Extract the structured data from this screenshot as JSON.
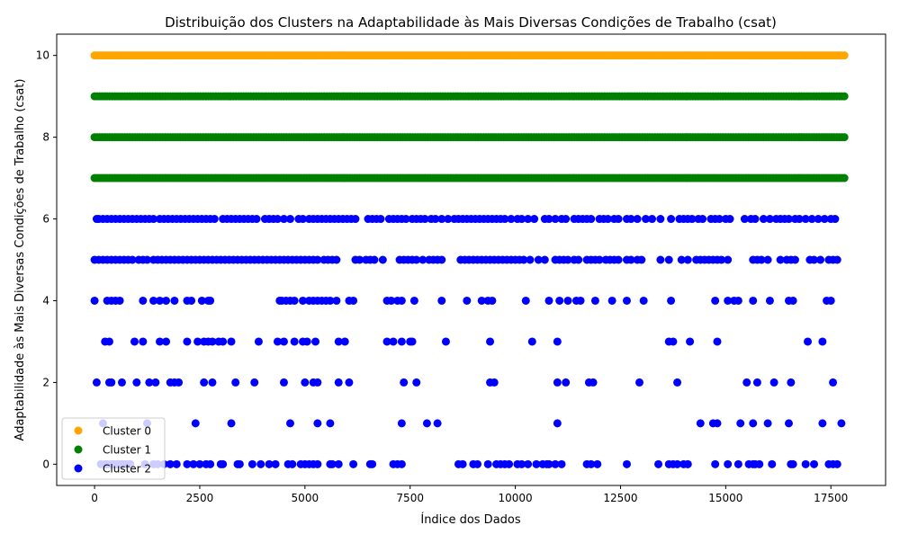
{
  "chart_data": {
    "type": "scatter",
    "title": "Distribuição dos Clusters na Adaptabilidade às Mais Diversas Condições de Trabalho (csat)",
    "xlabel": "Índice dos Dados",
    "ylabel": "Adaptabilidade às Mais Diversas Condições de Trabalho (csat)",
    "xlim": [
      -900,
      18800
    ],
    "ylim": [
      -0.52,
      10.52
    ],
    "xticks": [
      0,
      2500,
      5000,
      7500,
      10000,
      12500,
      15000,
      17500
    ],
    "yticks": [
      0,
      2,
      4,
      6,
      8,
      10
    ],
    "grid": false,
    "legend_position": "bottom-left",
    "series": [
      {
        "name": "Cluster 0",
        "color": "#ffa500",
        "rows": [
          {
            "y": 10,
            "x_ranges": [
              [
                0,
                17870
              ]
            ]
          }
        ]
      },
      {
        "name": "Cluster 1",
        "color": "#008000",
        "rows": [
          {
            "y": 9,
            "x_ranges": [
              [
                0,
                17870
              ]
            ]
          },
          {
            "y": 8,
            "x_ranges": [
              [
                0,
                17870
              ]
            ]
          },
          {
            "y": 7,
            "x_ranges": [
              [
                0,
                17870
              ]
            ]
          }
        ]
      },
      {
        "name": "Cluster 2",
        "color": "#0000ff",
        "rows": [
          {
            "y": 6,
            "x": [
              50,
              100,
              200,
              300,
              400,
              500,
              600,
              700,
              800,
              900,
              1000,
              1100,
              1200,
              1300,
              1400,
              1550,
              1650,
              1750,
              1850,
              1950,
              2050,
              2150,
              2250,
              2350,
              2450,
              2550,
              2650,
              2750,
              2850,
              3050,
              3150,
              3250,
              3350,
              3450,
              3550,
              3650,
              3750,
              3850,
              4050,
              4150,
              4250,
              4350,
              4500,
              4650,
              4850,
              4950,
              5100,
              5200,
              5300,
              5400,
              5500,
              5600,
              5700,
              5800,
              5900,
              6000,
              6100,
              6200,
              6500,
              6600,
              6700,
              6800,
              7000,
              7100,
              7200,
              7300,
              7400,
              7550,
              7650,
              7750,
              7850,
              8000,
              8100,
              8250,
              8400,
              8550,
              8650,
              8750,
              8850,
              8950,
              9050,
              9150,
              9250,
              9350,
              9450,
              9550,
              9650,
              9750,
              9900,
              10050,
              10150,
              10300,
              10450,
              10700,
              10800,
              10950,
              11100,
              11200,
              11400,
              11500,
              11600,
              11700,
              11800,
              12000,
              12100,
              12200,
              12350,
              12450,
              12650,
              12750,
              12900,
              13100,
              13250,
              13450,
              13700,
              13900,
              14000,
              14100,
              14200,
              14350,
              14450,
              14650,
              14750,
              14850,
              15000,
              15100,
              15450,
              15600,
              15700,
              15900,
              16050,
              16200,
              16300,
              16400,
              16500,
              16650,
              16750,
              16900,
              17050,
              17200,
              17350,
              17500,
              17600
            ]
          },
          {
            "y": 5,
            "x": [
              0,
              100,
              200,
              300,
              400,
              500,
              600,
              700,
              800,
              900,
              1050,
              1150,
              1250,
              1400,
              1500,
              1600,
              1700,
              1800,
              1900,
              2000,
              2100,
              2200,
              2300,
              2400,
              2500,
              2600,
              2700,
              2800,
              2900,
              3000,
              3100,
              3200,
              3300,
              3400,
              3500,
              3600,
              3700,
              3800,
              3900,
              4000,
              4100,
              4200,
              4300,
              4400,
              4500,
              4600,
              4700,
              4800,
              4900,
              5000,
              5100,
              5200,
              5300,
              5450,
              5550,
              5650,
              5750,
              6200,
              6300,
              6450,
              6550,
              6650,
              6850,
              7250,
              7350,
              7450,
              7550,
              7650,
              7800,
              7950,
              8050,
              8150,
              8250,
              8700,
              8800,
              8900,
              9000,
              9100,
              9200,
              9300,
              9400,
              9500,
              9600,
              9700,
              9800,
              9900,
              10000,
              10100,
              10200,
              10350,
              10550,
              10700,
              10950,
              11050,
              11150,
              11250,
              11400,
              11500,
              11700,
              11800,
              11900,
              12000,
              12150,
              12250,
              12350,
              12450,
              12650,
              12750,
              12900,
              13000,
              13450,
              13650,
              13950,
              14100,
              14300,
              14400,
              14500,
              14600,
              14700,
              14800,
              14900,
              15050,
              15650,
              15750,
              15850,
              16000,
              16300,
              16450,
              16550,
              16650,
              17000,
              17100,
              17250,
              17450,
              17550,
              17650
            ]
          },
          {
            "y": 4,
            "x": [
              0,
              300,
              400,
              500,
              600,
              1150,
              1400,
              1550,
              1700,
              1900,
              2200,
              2300,
              2550,
              2700,
              2750,
              4400,
              4450,
              4550,
              4650,
              4750,
              4950,
              5100,
              5200,
              5300,
              5400,
              5500,
              5600,
              5750,
              6050,
              6150,
              6950,
              7050,
              7200,
              7300,
              7600,
              8250,
              8850,
              9200,
              9350,
              9450,
              10250,
              10800,
              11050,
              11250,
              11450,
              11550,
              11900,
              12300,
              12650,
              13050,
              13700,
              14750,
              15050,
              15200,
              15300,
              15650,
              16050,
              16500,
              16600,
              17400,
              17500
            ]
          },
          {
            "y": 3,
            "x": [
              250,
              350,
              950,
              1150,
              1550,
              1700,
              2200,
              2450,
              2600,
              2700,
              2800,
              2950,
              3050,
              3250,
              3900,
              4350,
              4500,
              4750,
              4950,
              5050,
              5250,
              5800,
              5950,
              6950,
              7100,
              7300,
              7500,
              7550,
              8350,
              9400,
              10400,
              11000,
              13650,
              13750,
              14150,
              14800,
              16950,
              17300
            ]
          },
          {
            "y": 2,
            "x": [
              50,
              350,
              400,
              650,
              1000,
              1300,
              1450,
              1800,
              1900,
              2000,
              2600,
              2800,
              3350,
              3800,
              4500,
              5000,
              5200,
              5300,
              5800,
              6050,
              7350,
              7650,
              9400,
              9500,
              11000,
              11200,
              11750,
              11850,
              12950,
              13850,
              15500,
              15750,
              16150,
              16550,
              17550
            ]
          },
          {
            "y": 1,
            "x": [
              200,
              1250,
              2400,
              3250,
              4650,
              5300,
              5600,
              7300,
              7900,
              8150,
              11000,
              14400,
              14700,
              14800,
              15350,
              15650,
              16000,
              16500,
              17300,
              17750
            ]
          },
          {
            "y": 0,
            "x": [
              150,
              250,
              300,
              400,
              450,
              500,
              550,
              600,
              650,
              700,
              750,
              800,
              850,
              1200,
              1400,
              1500,
              1650,
              1800,
              1950,
              2200,
              2350,
              2500,
              2650,
              2750,
              3000,
              3050,
              3400,
              3450,
              3750,
              3950,
              4150,
              4300,
              4600,
              4700,
              4900,
              5000,
              5100,
              5200,
              5300,
              5600,
              5650,
              5800,
              6150,
              6550,
              6600,
              7100,
              7200,
              7300,
              8650,
              8750,
              9000,
              9100,
              9350,
              9550,
              9650,
              9750,
              9850,
              10050,
              10150,
              10300,
              10500,
              10650,
              10750,
              10800,
              10950,
              11100,
              11700,
              11800,
              11950,
              12650,
              13400,
              13650,
              13750,
              13850,
              14000,
              14100,
              14750,
              15050,
              15300,
              15550,
              15650,
              15700,
              15800,
              16100,
              16550,
              16600,
              16900,
              17100,
              17450,
              17550,
              17650
            ]
          }
        ]
      }
    ]
  }
}
